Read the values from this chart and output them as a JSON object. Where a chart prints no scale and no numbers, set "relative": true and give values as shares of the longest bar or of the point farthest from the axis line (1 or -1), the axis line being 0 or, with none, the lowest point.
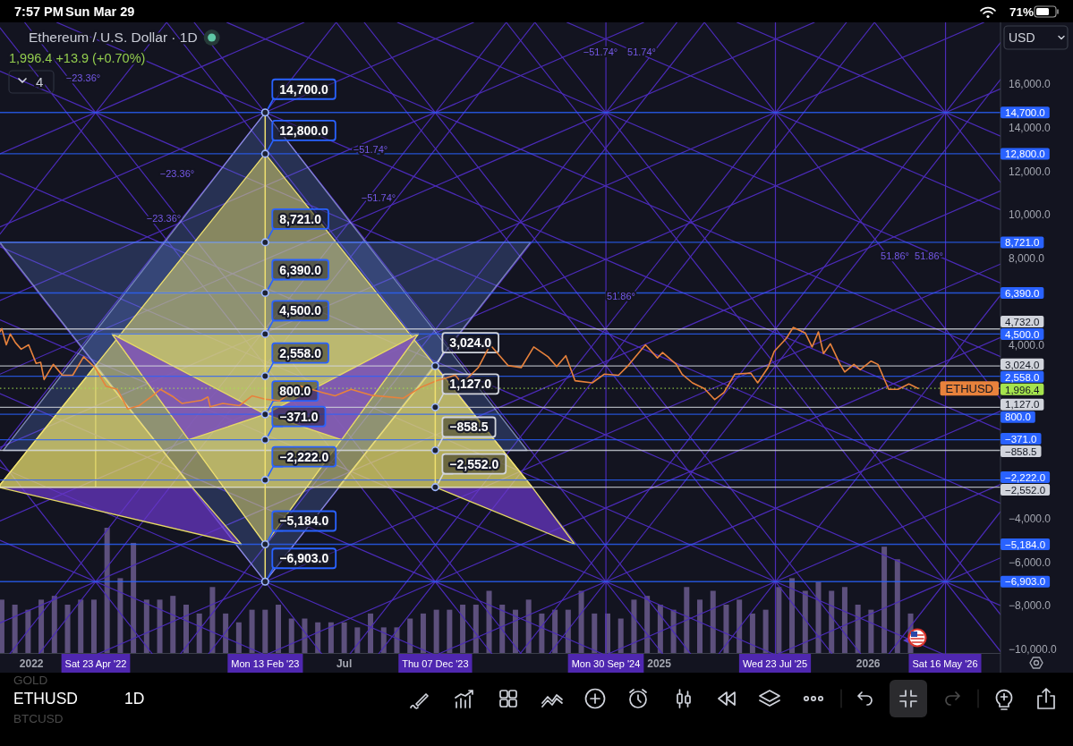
{
  "chart_data": [
    {
      "type": "line",
      "title": "Ethereum / U.S. Dollar · 1D",
      "subtitle": "1,996.4 +13.9 (+0.70%)",
      "xlim": [
        "2021-11-07",
        "2026-08-20"
      ],
      "ylim": [
        -10230,
        18850
      ],
      "xticks": [
        {
          "value": "2022-01-01",
          "label": "2022"
        },
        {
          "value": "2023-07-01",
          "label": "Jul"
        },
        {
          "value": "2025-01-01",
          "label": "2025"
        },
        {
          "value": "2026-01-01",
          "label": "2026"
        }
      ],
      "yticks": [
        {
          "value": 16000,
          "label": "16,000.0"
        },
        {
          "value": 14000,
          "label": "14,000.0"
        },
        {
          "value": 12000,
          "label": "12,000.0"
        },
        {
          "value": 10000,
          "label": "10,000.0"
        },
        {
          "value": 8000,
          "label": "8,000.0"
        },
        {
          "value": 4000,
          "label": "4,000.0"
        },
        {
          "value": -4000,
          "label": "−4,000.0"
        },
        {
          "value": -6000,
          "label": "−6,000.0"
        },
        {
          "value": -8000,
          "label": "−8,000.0"
        },
        {
          "value": -10000,
          "label": "−10,000.0"
        }
      ],
      "series": [
        {
          "name": "ETHUSD",
          "color": "#e8823c",
          "x": [
            "2021-11-07",
            "2021-11-10",
            "2021-11-18",
            "2021-11-25",
            "2021-12-04",
            "2021-12-14",
            "2021-12-27",
            "2022-01-09",
            "2022-01-17",
            "2022-01-23",
            "2022-02-08",
            "2022-02-24",
            "2022-03-14",
            "2022-04-02",
            "2022-04-22",
            "2022-05-11",
            "2022-05-31",
            "2022-06-18",
            "2022-07-08",
            "2022-07-31",
            "2022-08-14",
            "2022-09-06",
            "2022-09-21",
            "2022-10-25",
            "2022-11-05",
            "2022-11-09",
            "2022-12-01",
            "2022-12-30",
            "2023-01-21",
            "2023-02-13",
            "2023-03-10",
            "2023-04-16",
            "2023-05-25",
            "2023-06-15",
            "2023-07-13",
            "2023-08-17",
            "2023-10-12",
            "2023-11-12",
            "2023-12-10",
            "2024-01-11",
            "2024-01-23",
            "2024-02-20",
            "2024-03-12",
            "2024-04-12",
            "2024-05-05",
            "2024-05-27",
            "2024-06-21",
            "2024-07-06",
            "2024-07-22",
            "2024-08-07",
            "2024-09-06",
            "2024-09-27",
            "2024-10-22",
            "2024-11-08",
            "2024-12-08",
            "2024-12-29",
            "2025-01-07",
            "2025-01-31",
            "2025-02-10",
            "2025-02-28",
            "2025-03-21",
            "2025-04-08",
            "2025-04-24",
            "2025-05-13",
            "2025-06-10",
            "2025-06-22",
            "2025-07-10",
            "2025-07-21",
            "2025-08-11",
            "2025-08-23",
            "2025-09-13",
            "2025-09-25",
            "2025-10-06",
            "2025-10-15",
            "2025-10-27",
            "2025-11-13",
            "2025-11-21",
            "2025-12-07",
            "2025-12-18",
            "2026-01-06",
            "2026-01-18",
            "2026-01-31",
            "2026-02-06",
            "2026-02-22",
            "2026-03-13",
            "2026-03-29"
          ],
          "values": [
            4600,
            4750,
            4000,
            4500,
            4100,
            3800,
            4000,
            3150,
            3200,
            2400,
            3100,
            2600,
            2600,
            3450,
            2950,
            2100,
            1950,
            1050,
            1200,
            1650,
            1950,
            1600,
            1300,
            1450,
            1600,
            1150,
            1300,
            1200,
            1650,
            1500,
            1420,
            2100,
            1800,
            1650,
            1950,
            1680,
            1540,
            2050,
            2350,
            2600,
            2220,
            2950,
            4000,
            3050,
            2950,
            3900,
            3450,
            3000,
            3500,
            2350,
            2250,
            2650,
            2600,
            3050,
            4000,
            3400,
            3650,
            3100,
            2650,
            2250,
            1980,
            1480,
            1800,
            2650,
            2700,
            2250,
            2950,
            3700,
            4300,
            4800,
            4550,
            3900,
            4600,
            3600,
            4050,
            3100,
            2750,
            3100,
            2850,
            3250,
            3100,
            2300,
            1950,
            1950,
            2200,
            1996.4
          ]
        },
        {
          "color": "#efe070",
          "marker": "circle",
          "x": [
            "2023-02-13",
            "2023-02-13",
            "2023-02-13",
            "2023-02-13",
            "2023-02-13",
            "2023-02-13",
            "2023-02-13",
            "2023-02-13",
            "2023-02-13",
            "2023-02-13",
            "2023-02-13"
          ],
          "values": [
            14700,
            12800,
            8721,
            6390,
            4500,
            2558,
            800,
            -371,
            -2222,
            -5184,
            -6903
          ]
        },
        {
          "color": "#efe070",
          "x": [
            "2022-04-23",
            "2022-04-23"
          ],
          "values": [
            3024,
            -2552
          ]
        },
        {
          "color": "#efe070",
          "marker": "circle",
          "x": [
            "2023-12-07",
            "2023-12-07",
            "2023-12-07",
            "2023-12-07"
          ],
          "values": [
            3024,
            1127,
            -858.5,
            -2552
          ]
        },
        {
          "color": "#4b2bb8",
          "x": [
            "2021-11-07",
            "2022-08-25"
          ],
          "values": [
            9100,
            18850
          ]
        },
        {
          "color": "#4b2bb8",
          "x": [
            "2021-11-07",
            "2023-06-17"
          ],
          "values": [
            -840,
            18850
          ]
        },
        {
          "color": "#4b2bb8",
          "x": [
            "2021-11-24",
            "2024-04-09"
          ],
          "values": [
            -10230,
            18850
          ]
        },
        {
          "color": "#4b2bb8",
          "x": [
            "2022-09-18",
            "2025-02-01"
          ],
          "values": [
            -10230,
            18850
          ]
        },
        {
          "color": "#4b2bb8",
          "x": [
            "2023-07-11",
            "2025-11-24"
          ],
          "values": [
            -10230,
            18850
          ]
        },
        {
          "color": "#4b2bb8",
          "x": [
            "2024-05-03",
            "2026-08-20"
          ],
          "values": [
            -10230,
            17920
          ]
        },
        {
          "color": "#4b2bb8",
          "x": [
            "2021-12-20",
            "2024-05-05"
          ],
          "values": [
            18850,
            -10230
          ]
        },
        {
          "color": "#4b2bb8",
          "x": [
            "2022-10-12",
            "2025-02-25"
          ],
          "values": [
            18850,
            -10230
          ]
        },
        {
          "color": "#4b2bb8",
          "x": [
            "2023-08-05",
            "2025-12-19"
          ],
          "values": [
            18850,
            -10230
          ]
        },
        {
          "color": "#4b2bb8",
          "x": [
            "2024-05-29",
            "2026-08-20"
          ],
          "values": [
            18850,
            -8420
          ]
        },
        {
          "color": "#4b2bb8",
          "x": [
            "2025-03-21",
            "2026-08-20"
          ],
          "values": [
            18850,
            1510
          ]
        },
        {
          "color": "#4b2bb8",
          "x": [
            "2026-01-12",
            "2026-08-20"
          ],
          "values": [
            18850,
            11480
          ]
        },
        {
          "color": "#4b2bb8",
          "x": [
            "2022-01-14",
            "2024-05-29"
          ],
          "values": [
            -10230,
            18850
          ]
        },
        {
          "color": "#4b2bb8",
          "x": [
            "2022-11-06",
            "2025-03-21"
          ],
          "values": [
            -10230,
            18850
          ]
        },
        {
          "color": "#4b2bb8",
          "x": [
            "2023-08-30",
            "2026-01-12"
          ],
          "values": [
            -10230,
            18850
          ]
        },
        {
          "color": "#4b2bb8",
          "x": [
            "2024-06-23",
            "2026-08-20"
          ],
          "values": [
            -10230,
            16220
          ]
        },
        {
          "color": "#4b2bb8",
          "x": [
            "2025-04-15",
            "2026-08-20"
          ],
          "values": [
            -10230,
            6290
          ]
        },
        {
          "color": "#4b2bb8",
          "x": [
            "2026-02-06",
            "2026-08-20"
          ],
          "values": [
            -10230,
            -3680
          ]
        },
        {
          "color": "#4b2bb8",
          "x": [
            "2021-11-07",
            "2022-07-31"
          ],
          "values": [
            -1300,
            -10230
          ]
        },
        {
          "color": "#4b2bb8",
          "x": [
            "2021-11-07",
            "2023-05-23"
          ],
          "values": [
            8640,
            -10230
          ]
        },
        {
          "color": "#4b2bb8",
          "x": [
            "2021-11-07",
            "2024-03-15"
          ],
          "values": [
            18600,
            -10230
          ]
        },
        {
          "color": "#4b2bb8",
          "x": [
            "2022-08-25",
            "2025-01-07"
          ],
          "values": [
            18850,
            -10230
          ]
        },
        {
          "color": "#4b2bb8",
          "x": [
            "2023-06-17",
            "2025-10-30"
          ],
          "values": [
            18850,
            -10230
          ]
        },
        {
          "color": "#4b2bb8",
          "x": [
            "2024-04-09",
            "2026-08-20"
          ],
          "values": [
            18850,
            -10120
          ]
        },
        {
          "color": "#4b2bb8",
          "x": [
            "2021-11-07",
            "2023-04-22"
          ],
          "values": [
            12800,
            18850
          ]
        },
        {
          "color": "#4b2bb8",
          "x": [
            "2021-11-07",
            "2024-02-12"
          ],
          "values": [
            9430,
            18850
          ]
        },
        {
          "color": "#4b2bb8",
          "x": [
            "2021-11-07",
            "2024-12-05"
          ],
          "values": [
            6040,
            18850
          ]
        },
        {
          "color": "#4b2bb8",
          "x": [
            "2021-11-07",
            "2025-09-29"
          ],
          "values": [
            2650,
            18850
          ]
        },
        {
          "color": "#4b2bb8",
          "x": [
            "2021-11-07",
            "2026-07-22"
          ],
          "values": [
            -720,
            18850
          ]
        },
        {
          "color": "#4b2bb8",
          "x": [
            "2021-11-07",
            "2026-08-20"
          ],
          "values": [
            -4110,
            15790
          ]
        },
        {
          "color": "#4b2bb8",
          "x": [
            "2021-11-07",
            "2026-08-20"
          ],
          "values": [
            16600,
            -3300
          ]
        },
        {
          "color": "#4b2bb8",
          "x": [
            "2022-02-14",
            "2026-08-20"
          ],
          "values": [
            18850,
            80
          ]
        },
        {
          "color": "#4b2bb8",
          "x": [
            "2022-12-08",
            "2026-08-20"
          ],
          "values": [
            18850,
            3460
          ]
        },
        {
          "color": "#4b2bb8",
          "x": [
            "2023-10-02",
            "2026-08-20"
          ],
          "values": [
            18850,
            6850
          ]
        },
        {
          "color": "#4b2bb8",
          "x": [
            "2024-07-24",
            "2026-08-20"
          ],
          "values": [
            18850,
            10220
          ]
        },
        {
          "color": "#4b2bb8",
          "x": [
            "2025-05-17",
            "2026-08-20"
          ],
          "values": [
            18850,
            13610
          ]
        },
        {
          "color": "#4b2bb8",
          "x": [
            "2021-11-07",
            "2026-08-20"
          ],
          "values": [
            -8810,
            11090
          ]
        },
        {
          "color": "#4b2bb8",
          "x": [
            "2022-04-27",
            "2026-08-20"
          ],
          "values": [
            -10230,
            7720
          ]
        },
        {
          "color": "#4b2bb8",
          "x": [
            "2023-02-18",
            "2026-08-20"
          ],
          "values": [
            -10230,
            4340
          ]
        },
        {
          "color": "#4b2bb8",
          "x": [
            "2023-12-13",
            "2026-08-20"
          ],
          "values": [
            -10230,
            950
          ]
        },
        {
          "color": "#4b2bb8",
          "x": [
            "2024-10-04",
            "2026-08-20"
          ],
          "values": [
            -10230,
            -2430
          ]
        },
        {
          "color": "#4b2bb8",
          "x": [
            "2025-07-28",
            "2026-08-20"
          ],
          "values": [
            -10230,
            -5810
          ]
        },
        {
          "color": "#4b2bb8",
          "x": [
            "2021-11-07",
            "2023-02-09"
          ],
          "values": [
            -5000,
            -10230
          ]
        },
        {
          "color": "#4b2bb8",
          "x": [
            "2021-11-07",
            "2023-12-02"
          ],
          "values": [
            -1630,
            -10230
          ]
        },
        {
          "color": "#4b2bb8",
          "x": [
            "2021-11-07",
            "2024-09-24"
          ],
          "values": [
            1750,
            -10230
          ]
        },
        {
          "color": "#4b2bb8",
          "x": [
            "2021-11-07",
            "2025-07-19"
          ],
          "values": [
            5150,
            -10230
          ]
        },
        {
          "color": "#4b2bb8",
          "x": [
            "2021-11-07",
            "2026-05-11"
          ],
          "values": [
            8520,
            -10230
          ]
        },
        {
          "color": "#4b2bb8",
          "x": [
            "2021-11-07",
            "2026-08-20"
          ],
          "values": [
            11900,
            -8000
          ]
        }
      ],
      "ref_lines": [
        {
          "axis": "y",
          "value": 14700,
          "label": "14,700.0",
          "color": "#2962ff"
        },
        {
          "axis": "y",
          "value": 12800,
          "label": "12,800.0",
          "color": "#2962ff"
        },
        {
          "axis": "y",
          "value": 8721,
          "label": "8,721.0",
          "color": "#2962ff"
        },
        {
          "axis": "y",
          "value": 6390,
          "label": "6,390.0",
          "color": "#2962ff"
        },
        {
          "axis": "y",
          "value": 4732,
          "label": "4,732.0",
          "color": "#d1d4dc"
        },
        {
          "axis": "y",
          "value": 4500,
          "label": "4,500.0",
          "color": "#2962ff"
        },
        {
          "axis": "y",
          "value": 3024,
          "label": "3,024.0",
          "color": "#d1d4dc"
        },
        {
          "axis": "y",
          "value": 2558,
          "label": "2,558.0",
          "color": "#2962ff"
        },
        {
          "axis": "y",
          "value": 1996.4,
          "label": "1,996.4",
          "color": "#a5e34d",
          "line_style": "dotted"
        },
        {
          "axis": "y",
          "value": 1127,
          "label": "1,127.0",
          "color": "#d1d4dc"
        },
        {
          "axis": "y",
          "value": 800,
          "label": "800.0",
          "color": "#2962ff"
        },
        {
          "axis": "y",
          "value": -371,
          "label": "−371.0",
          "color": "#2962ff"
        },
        {
          "axis": "y",
          "value": -858.5,
          "label": "−858.5",
          "color": "#d1d4dc"
        },
        {
          "axis": "y",
          "value": -2222,
          "label": "−2,222.0",
          "color": "#2962ff"
        },
        {
          "axis": "y",
          "value": -2552,
          "label": "−2,552.0",
          "color": "#d1d4dc"
        },
        {
          "axis": "y",
          "value": -5184,
          "label": "−5,184.0",
          "color": "#2962ff"
        },
        {
          "axis": "y",
          "value": -6903,
          "label": "−6,903.0",
          "color": "#2962ff"
        },
        {
          "axis": "x",
          "value": "2024-09-30",
          "color": "#4b2bb8"
        },
        {
          "axis": "x",
          "value": "2025-07-23",
          "color": "#4b2bb8"
        },
        {
          "axis": "x",
          "value": "2026-05-16",
          "color": "#4b2bb8"
        }
      ],
      "annotations": [
        "7:57 PM",
        "Sun Mar 29",
        "71%",
        "4",
        "USD",
        "ETHUSD",
        "1D",
        "GOLD",
        "BTCUSD",
        "Sat 23 Apr '22",
        "Mon 13 Feb '23",
        "Thu 07 Dec '23",
        "Mon 30 Sep '24",
        "Wed 23 Jul '25",
        "Sat 16 May '26",
        "−23.36°",
        "−23.36°",
        "−23.36°",
        "−51.74°",
        "−51.74°",
        "−51.74°",
        "51.74°",
        "51.86°",
        "51.86°",
        "51.86°",
        {
          "text": "14,700.0",
          "x": "2023-02-13",
          "y": 14700
        },
        {
          "text": "12,800.0",
          "x": "2023-02-13",
          "y": 12800
        },
        {
          "text": "8,721.0",
          "x": "2023-02-13",
          "y": 8721
        },
        {
          "text": "6,390.0",
          "x": "2023-02-13",
          "y": 6390
        },
        {
          "text": "4,500.0",
          "x": "2023-02-13",
          "y": 4500
        },
        {
          "text": "2,558.0",
          "x": "2023-02-13",
          "y": 2558
        },
        {
          "text": "800.0",
          "x": "2023-02-13",
          "y": 800
        },
        {
          "text": "−371.0",
          "x": "2023-02-13",
          "y": -371
        },
        {
          "text": "−2,222.0",
          "x": "2023-02-13",
          "y": -2222
        },
        {
          "text": "−5,184.0",
          "x": "2023-02-13",
          "y": -5184
        },
        {
          "text": "−6,903.0",
          "x": "2023-02-13",
          "y": -6903
        },
        {
          "text": "3,024.0",
          "x": "2023-12-07",
          "y": 3024
        },
        {
          "text": "1,127.0",
          "x": "2023-12-07",
          "y": 1127
        },
        {
          "text": "−858.5",
          "x": "2023-12-07",
          "y": -858.5
        },
        {
          "text": "−2,552.0",
          "x": "2023-12-07",
          "y": -2552
        }
      ]
    },
    {
      "type": "bar",
      "relative": true,
      "tick_labels": false,
      "xlim": [
        "2021-11-07",
        "2026-08-20"
      ],
      "color": "#6b5a8e",
      "x": [
        "2021-11-10",
        "2021-12-03",
        "2021-12-26",
        "2022-01-18",
        "2022-02-10",
        "2022-03-05",
        "2022-03-28",
        "2022-04-20",
        "2022-05-13",
        "2022-06-05",
        "2022-06-28",
        "2022-07-21",
        "2022-08-13",
        "2022-09-05",
        "2022-09-28",
        "2022-10-21",
        "2022-11-13",
        "2022-12-06",
        "2022-12-29",
        "2023-01-21",
        "2023-02-13",
        "2023-03-08",
        "2023-03-31",
        "2023-04-23",
        "2023-05-16",
        "2023-06-08",
        "2023-07-01",
        "2023-07-24",
        "2023-08-16",
        "2023-09-08",
        "2023-10-01",
        "2023-10-24",
        "2023-11-16",
        "2023-12-09",
        "2024-01-01",
        "2024-01-24",
        "2024-02-16",
        "2024-03-10",
        "2024-04-02",
        "2024-04-25",
        "2024-05-18",
        "2024-06-10",
        "2024-07-03",
        "2024-07-26",
        "2024-08-18",
        "2024-09-10",
        "2024-10-03",
        "2024-10-26",
        "2024-11-18",
        "2024-12-11",
        "2025-01-03",
        "2025-01-26",
        "2025-02-18",
        "2025-03-13",
        "2025-04-05",
        "2025-04-28",
        "2025-05-21",
        "2025-06-13",
        "2025-07-06",
        "2025-07-29",
        "2025-08-21",
        "2025-09-13",
        "2025-10-06",
        "2025-10-29",
        "2025-11-21",
        "2025-12-14",
        "2026-01-06",
        "2026-01-29",
        "2026-02-21",
        "2026-03-16"
      ],
      "values": [
        0.43,
        0.39,
        0.35,
        0.43,
        0.46,
        0.39,
        0.43,
        0.43,
        1,
        0.6,
        0.88,
        0.43,
        0.43,
        0.46,
        0.39,
        0.32,
        0.53,
        0.32,
        0.25,
        0.35,
        0.35,
        0.39,
        0.28,
        0.28,
        0.25,
        0.25,
        0.25,
        0.21,
        0.32,
        0.21,
        0.21,
        0.28,
        0.32,
        0.35,
        0.35,
        0.39,
        0.39,
        0.5,
        0.39,
        0.35,
        0.43,
        0.32,
        0.35,
        0.35,
        0.5,
        0.32,
        0.32,
        0.28,
        0.43,
        0.46,
        0.39,
        0.35,
        0.53,
        0.43,
        0.5,
        0.39,
        0.43,
        0.32,
        0.35,
        0.53,
        0.6,
        0.5,
        0.57,
        0.5,
        0.53,
        0.39,
        0.35,
        0.85,
        0.75,
        0.32
      ]
    }
  ]
}
